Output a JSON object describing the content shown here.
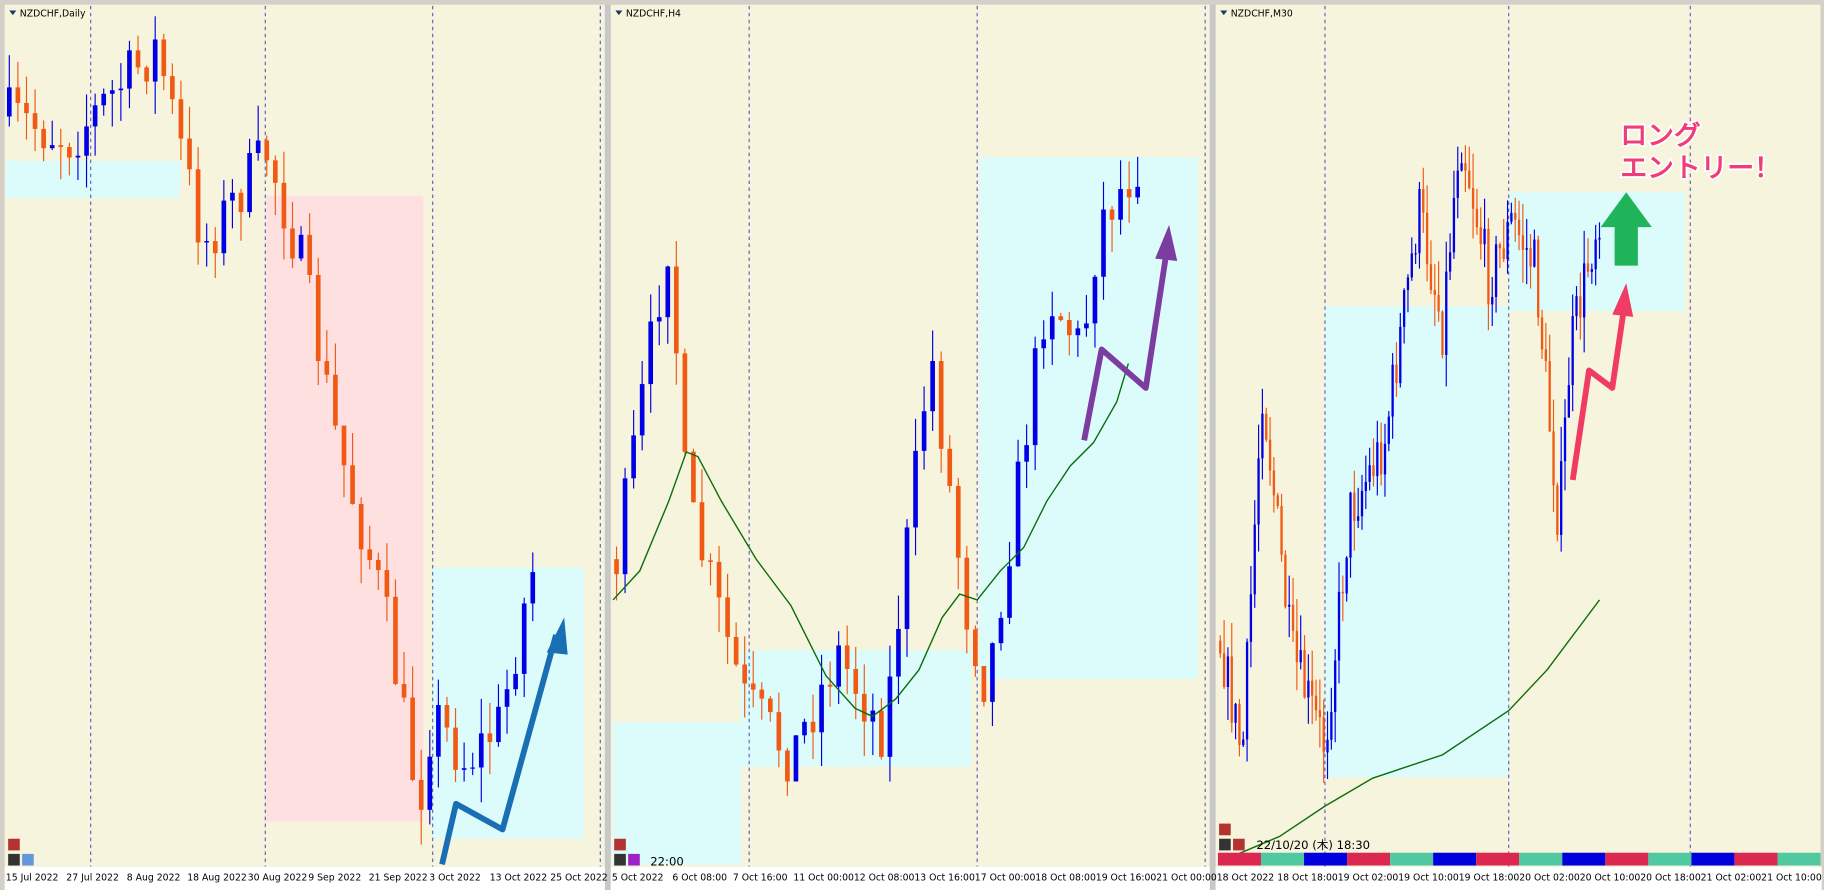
{
  "panels": [
    {
      "title": "NZDCHF,Daily",
      "dates": [
        "15 Jul 2022",
        "27 Jul 2022",
        "8 Aug 2022",
        "18 Aug 2022",
        "30 Aug 2022",
        "9 Sep 2022",
        "21 Sep 2022",
        "3 Oct 2022",
        "13 Oct 2022",
        "25 Oct 2022"
      ]
    },
    {
      "title": "NZDCHF,H4",
      "dates": [
        "5 Oct 2022",
        "6 Oct 08:00",
        "7 Oct 16:00",
        "11 Oct 00:00",
        "12 Oct 08:00",
        "13 Oct 16:00",
        "17 Oct 00:00",
        "18 Oct 08:00",
        "19 Oct 16:00",
        "21 Oct 00:00"
      ],
      "label": "22:00"
    },
    {
      "title": "NZDCHF,M30",
      "dates": [
        "18 Oct 2022",
        "18 Oct 18:00",
        "19 Oct 02:00",
        "19 Oct 10:00",
        "19 Oct 18:00",
        "20 Oct 02:00",
        "20 Oct 10:00",
        "20 Oct 18:00",
        "21 Oct 02:00",
        "21 Oct 10:00"
      ],
      "timestamp": "22/10/20 (木) 18:30",
      "annotation": [
        "ロング",
        "エントリー！"
      ]
    }
  ]
}
